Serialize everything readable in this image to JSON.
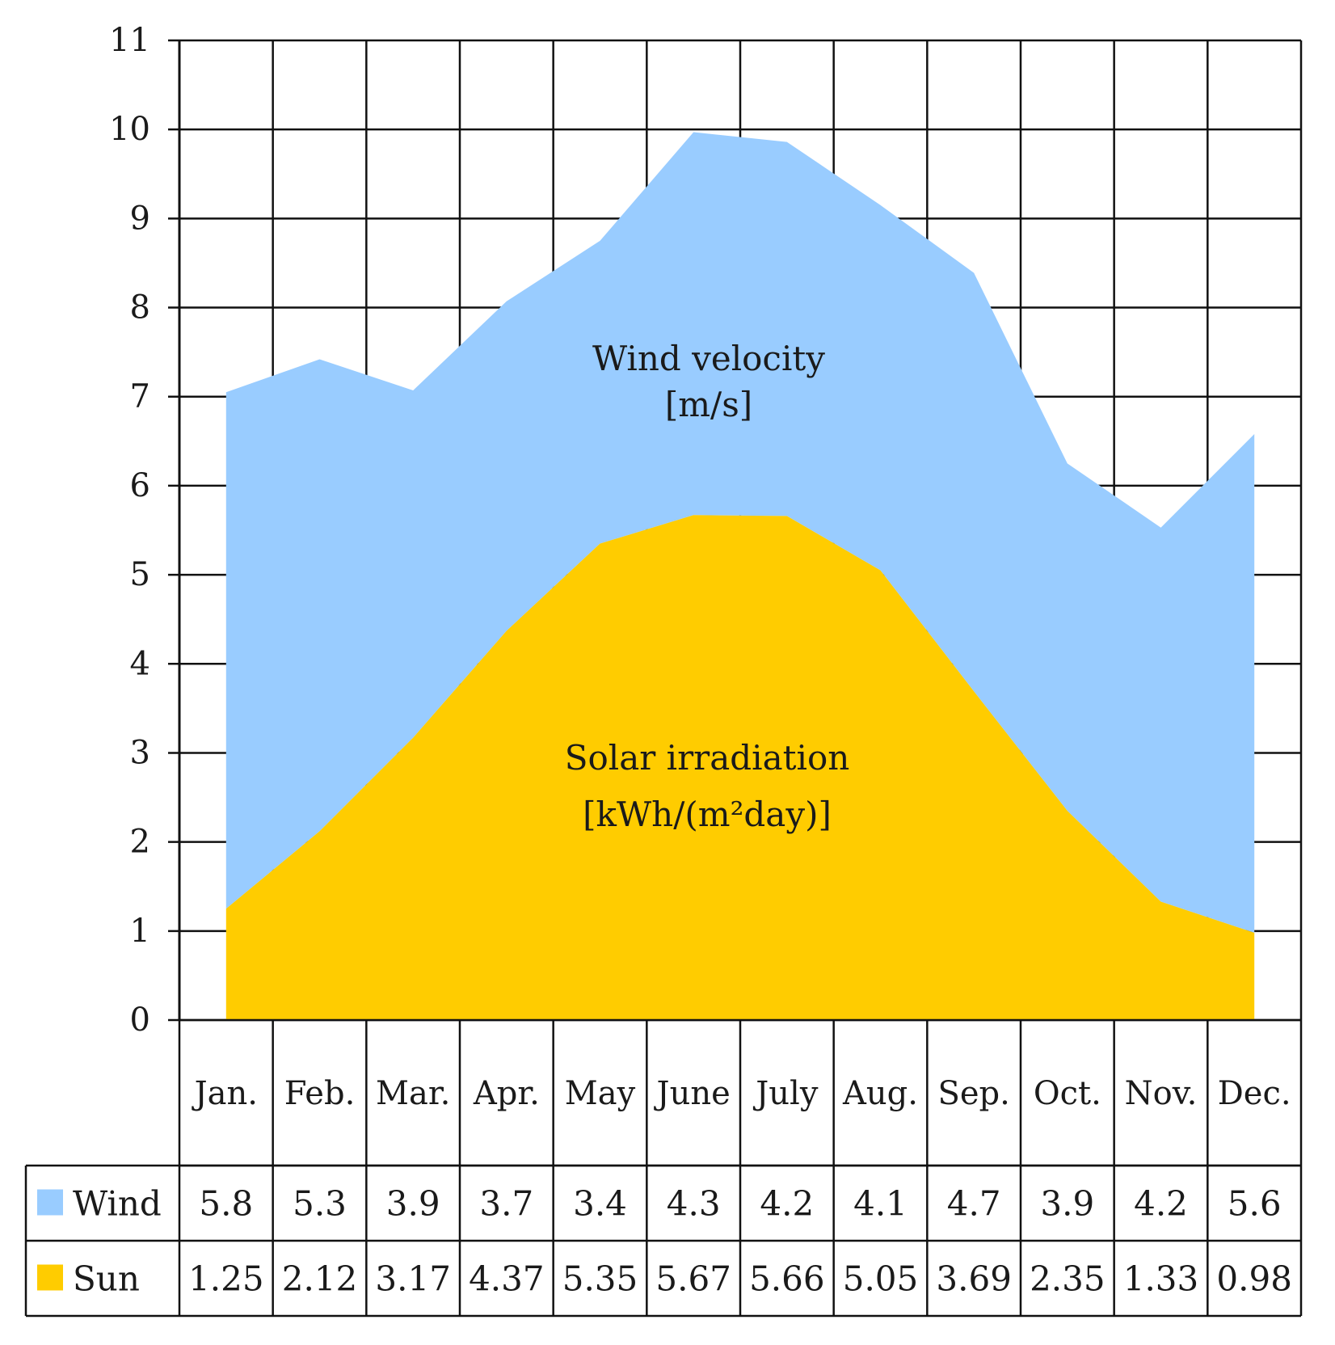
{
  "chart_data": {
    "type": "area",
    "title": "",
    "xlabel": "",
    "ylabel": "",
    "ylim": [
      0,
      11
    ],
    "yticks": [
      "0",
      "1",
      "2",
      "3",
      "4",
      "5",
      "6",
      "7",
      "8",
      "9",
      "10",
      "11"
    ],
    "grid": true,
    "categories": [
      "Jan.",
      "Feb.",
      "Mar.",
      "Apr.",
      "May",
      "June",
      "July",
      "Aug.",
      "Sep.",
      "Oct.",
      "Nov.",
      "Dec."
    ],
    "series": [
      {
        "name": "Wind",
        "color": "#99CCFF",
        "stacked_on": "Sun",
        "values": [
          5.8,
          5.3,
          3.9,
          3.7,
          3.4,
          4.3,
          4.2,
          4.1,
          4.7,
          3.9,
          4.2,
          5.6
        ],
        "table_labels": [
          "5.8",
          "5.3",
          "3.9",
          "3.7",
          "3.4",
          "4.3",
          "4.2",
          "4.1",
          "4.7",
          "3.9",
          "4.2",
          "5.6"
        ]
      },
      {
        "name": "Sun",
        "color": "#FFCC00",
        "values": [
          1.25,
          2.12,
          3.17,
          4.37,
          5.35,
          5.67,
          5.66,
          5.05,
          3.69,
          2.35,
          1.33,
          0.98
        ],
        "table_labels": [
          "1.25",
          "2.12",
          "3.17",
          "4.37",
          "5.35",
          "5.67",
          "5.66",
          "5.05",
          "3.69",
          "2.35",
          "1.33",
          "0.98"
        ]
      }
    ],
    "annotations": [
      {
        "series": "Wind",
        "line1": "Wind velocity",
        "line2": "[m/s]"
      },
      {
        "series": "Sun",
        "line1": "Solar irradiation",
        "line2": "[kWh/(m²day)]"
      }
    ]
  }
}
